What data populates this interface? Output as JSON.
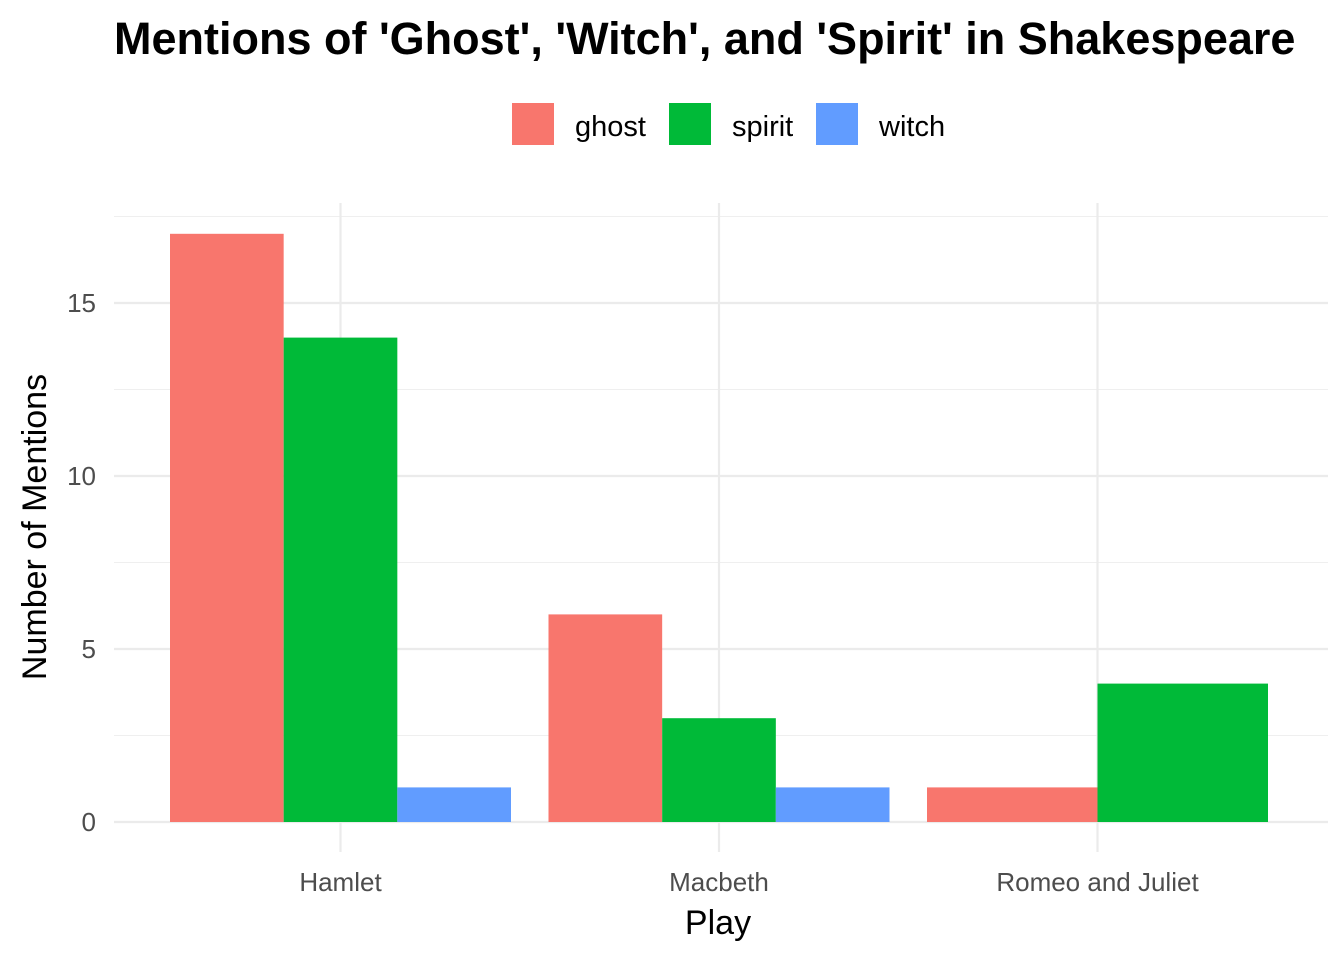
{
  "chart_data": {
    "type": "bar",
    "title": "Mentions of 'Ghost', 'Witch', and 'Spirit' in Shakespeare",
    "xlabel": "Play",
    "ylabel": "Number of Mentions",
    "categories": [
      "Hamlet",
      "Macbeth",
      "Romeo and Juliet"
    ],
    "series": [
      {
        "name": "ghost",
        "color": "#F8766D",
        "values": [
          17,
          6,
          1
        ]
      },
      {
        "name": "spirit",
        "color": "#00BA38",
        "values": [
          14,
          3,
          4
        ]
      },
      {
        "name": "witch",
        "color": "#619CFF",
        "values": [
          1,
          1,
          null
        ]
      }
    ],
    "y_ticks": [
      0,
      5,
      10,
      15
    ],
    "ylim": [
      0,
      17.6
    ],
    "legend_position": "top",
    "grid": true
  }
}
